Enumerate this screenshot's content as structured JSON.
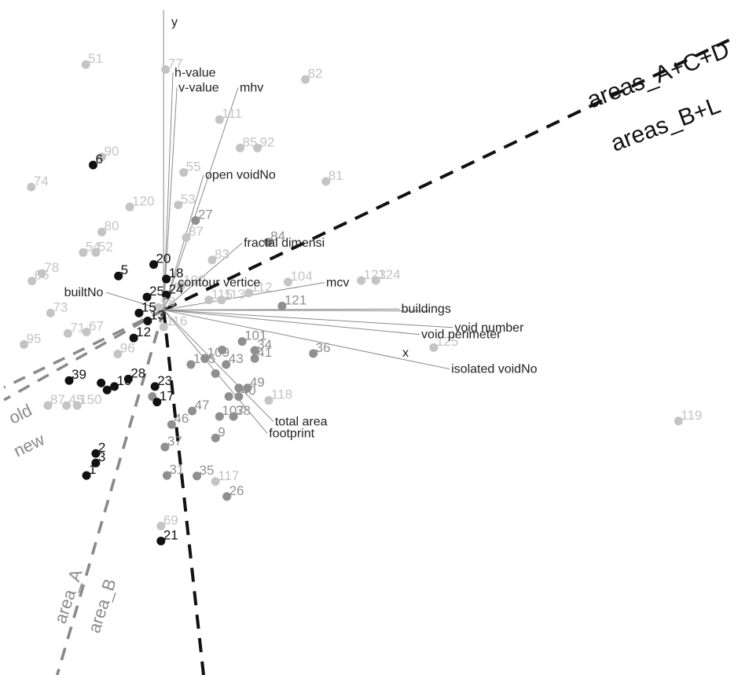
{
  "chart_data": {
    "type": "scatter",
    "title": "",
    "xlabel": "x",
    "ylabel": "y",
    "grid": false,
    "legend": "none",
    "colors": {
      "dark": "#111111",
      "mid": "#8f8f8f",
      "light": "#c4c4c4",
      "dashed_black": "#111111",
      "dashed_gray": "#8a8a8a",
      "loading_line": "#8a8a8a"
    },
    "points": [
      {
        "id": "6",
        "x": 2.14,
        "y": 3.4,
        "tone": "dark"
      },
      {
        "id": "1",
        "x": 2.04,
        "y": -2.81,
        "tone": "dark"
      },
      {
        "id": "2",
        "x": 2.18,
        "y": -2.37,
        "tone": "dark"
      },
      {
        "id": "3",
        "x": 2.18,
        "y": -2.56,
        "tone": "dark"
      },
      {
        "id": "5",
        "x": 2.52,
        "y": 1.18,
        "tone": "dark"
      },
      {
        "id": "12",
        "x": 2.75,
        "y": -0.06,
        "tone": "dark"
      },
      {
        "id": "13",
        "x": 2.96,
        "y": 0.28,
        "tone": "dark"
      },
      {
        "id": "15",
        "x": 2.83,
        "y": 0.44,
        "tone": "dark"
      },
      {
        "id": "18",
        "x": 3.24,
        "y": 1.12,
        "tone": "dark"
      },
      {
        "id": "20",
        "x": 3.05,
        "y": 1.41,
        "tone": "dark"
      },
      {
        "id": "21",
        "x": 3.16,
        "y": -4.12,
        "tone": "dark"
      },
      {
        "id": "23",
        "x": 3.07,
        "y": -1.03,
        "tone": "dark"
      },
      {
        "id": "25",
        "x": 2.95,
        "y": 0.76,
        "tone": "dark"
      },
      {
        "id": "28",
        "x": 2.67,
        "y": -0.88,
        "tone": "dark"
      },
      {
        "id": "39",
        "x": 1.78,
        "y": -0.91,
        "tone": "dark"
      },
      {
        "id": "10",
        "x": 2.46,
        "y": -1.03,
        "tone": "dark"
      },
      {
        "id": "11",
        "x": 2.26,
        "y": -0.96,
        "tone": "dark"
      },
      {
        "id": "17",
        "x": 3.1,
        "y": -1.34,
        "tone": "dark"
      },
      {
        "id": "22",
        "x": 2.35,
        "y": -1.1,
        "tone": "dark"
      },
      {
        "id": "24",
        "x": 3.24,
        "y": 0.8,
        "tone": "dark"
      },
      {
        "id": "27",
        "x": 3.68,
        "y": 2.29,
        "tone": "mid"
      },
      {
        "id": "36",
        "x": 5.45,
        "y": -0.37,
        "tone": "mid"
      },
      {
        "id": "35",
        "x": 3.7,
        "y": -2.82,
        "tone": "mid"
      },
      {
        "id": "26",
        "x": 4.15,
        "y": -3.23,
        "tone": "mid"
      },
      {
        "id": "31",
        "x": 3.25,
        "y": -2.81,
        "tone": "mid"
      },
      {
        "id": "37",
        "x": 3.22,
        "y": -2.24,
        "tone": "mid"
      },
      {
        "id": "46",
        "x": 3.32,
        "y": -1.79,
        "tone": "mid"
      },
      {
        "id": "47",
        "x": 3.63,
        "y": -1.52,
        "tone": "mid"
      },
      {
        "id": "16",
        "x": 3.03,
        "y": -1.23,
        "tone": "mid"
      },
      {
        "id": "40",
        "x": 4.33,
        "y": -1.23,
        "tone": "mid"
      },
      {
        "id": "48",
        "x": 4.33,
        "y": -1.06,
        "tone": "mid"
      },
      {
        "id": "49",
        "x": 4.46,
        "y": -1.06,
        "tone": "mid"
      },
      {
        "id": "41",
        "x": 4.57,
        "y": -0.47,
        "tone": "mid"
      },
      {
        "id": "34",
        "x": 4.57,
        "y": -0.31,
        "tone": "mid"
      },
      {
        "id": "43",
        "x": 4.14,
        "y": -0.59,
        "tone": "mid"
      },
      {
        "id": "38",
        "x": 4.25,
        "y": -1.63,
        "tone": "mid"
      },
      {
        "id": "107",
        "x": 4.04,
        "y": -1.63,
        "tone": "mid"
      },
      {
        "id": "109",
        "x": 3.82,
        "y": -0.47,
        "tone": "mid"
      },
      {
        "id": "105",
        "x": 3.61,
        "y": -0.59,
        "tone": "mid"
      },
      {
        "id": "102",
        "x": 4.08,
        "y": -0.3,
        "tone": "mid"
      },
      {
        "id": "101",
        "x": 4.38,
        "y": -0.13,
        "tone": "mid"
      },
      {
        "id": "9",
        "x": 3.98,
        "y": -2.06,
        "tone": "mid"
      },
      {
        "id": "29",
        "x": 4.18,
        "y": -1.23,
        "tone": "mid"
      },
      {
        "id": "42",
        "x": 3.98,
        "y": -0.77,
        "tone": "mid"
      },
      {
        "id": "117",
        "x": 3.98,
        "y": -2.93,
        "tone": "light"
      },
      {
        "id": "118",
        "x": 4.78,
        "y": -1.31,
        "tone": "light"
      },
      {
        "id": "116",
        "x": 3.2,
        "y": 0.16,
        "tone": "light"
      },
      {
        "id": "125",
        "x": 7.26,
        "y": -0.25,
        "tone": "light"
      },
      {
        "id": "119",
        "x": 10.94,
        "y": -1.72,
        "tone": "light"
      },
      {
        "id": "121",
        "x": 4.98,
        "y": 0.58,
        "tone": "mid"
      },
      {
        "id": "123",
        "x": 6.17,
        "y": 1.09,
        "tone": "light"
      },
      {
        "id": "124",
        "x": 6.39,
        "y": 1.09,
        "tone": "light"
      },
      {
        "id": "104",
        "x": 5.07,
        "y": 1.06,
        "tone": "light"
      },
      {
        "id": "112",
        "x": 4.48,
        "y": 0.84,
        "tone": "light"
      },
      {
        "id": "113",
        "x": 4.07,
        "y": 0.7,
        "tone": "light"
      },
      {
        "id": "115",
        "x": 3.88,
        "y": 0.7,
        "tone": "light"
      },
      {
        "id": "100",
        "x": 3.46,
        "y": 0.98,
        "tone": "light"
      },
      {
        "id": "98",
        "x": 3.12,
        "y": 0.55,
        "tone": "light"
      },
      {
        "id": "84",
        "x": 4.77,
        "y": 1.86,
        "tone": "mid"
      },
      {
        "id": "87",
        "x": 3.54,
        "y": 1.95,
        "tone": "light"
      },
      {
        "id": "83",
        "x": 3.93,
        "y": 1.5,
        "tone": "light"
      },
      {
        "id": "53",
        "x": 3.42,
        "y": 2.6,
        "tone": "light"
      },
      {
        "id": "55",
        "x": 3.5,
        "y": 3.25,
        "tone": "light"
      },
      {
        "id": "111",
        "x": 4.04,
        "y": 4.31,
        "tone": "light"
      },
      {
        "id": "85",
        "x": 4.35,
        "y": 3.74,
        "tone": "light"
      },
      {
        "id": "92",
        "x": 4.61,
        "y": 3.74,
        "tone": "light"
      },
      {
        "id": "82",
        "x": 5.33,
        "y": 5.11,
        "tone": "light"
      },
      {
        "id": "81",
        "x": 5.64,
        "y": 3.07,
        "tone": "light"
      },
      {
        "id": "77",
        "x": 3.23,
        "y": 5.31,
        "tone": "light"
      },
      {
        "id": "51",
        "x": 2.03,
        "y": 5.41,
        "tone": "light"
      },
      {
        "id": "90",
        "x": 2.27,
        "y": 3.56,
        "tone": "light"
      },
      {
        "id": "120",
        "x": 2.69,
        "y": 2.56,
        "tone": "light"
      },
      {
        "id": "80",
        "x": 2.27,
        "y": 2.06,
        "tone": "light"
      },
      {
        "id": "74",
        "x": 1.21,
        "y": 2.96,
        "tone": "light"
      },
      {
        "id": "54",
        "x": 1.99,
        "y": 1.65,
        "tone": "light"
      },
      {
        "id": "52",
        "x": 2.18,
        "y": 1.65,
        "tone": "light"
      },
      {
        "id": "78",
        "x": 1.37,
        "y": 1.23,
        "tone": "light"
      },
      {
        "id": "66",
        "x": 1.22,
        "y": 1.08,
        "tone": "light"
      },
      {
        "id": "73",
        "x": 1.5,
        "y": 0.44,
        "tone": "light"
      },
      {
        "id": "71",
        "x": 1.76,
        "y": 0.03,
        "tone": "light"
      },
      {
        "id": "67",
        "x": 2.04,
        "y": 0.06,
        "tone": "light"
      },
      {
        "id": "95",
        "x": 1.1,
        "y": -0.19,
        "tone": "light"
      },
      {
        "id": "96",
        "x": 2.51,
        "y": -0.38,
        "tone": "light"
      },
      {
        "id": "87b",
        "x": 1.46,
        "y": -1.41,
        "tone": "light"
      },
      {
        "id": "45",
        "x": 1.74,
        "y": -1.41,
        "tone": "light"
      },
      {
        "id": "150",
        "x": 1.9,
        "y": -1.41,
        "tone": "light"
      },
      {
        "id": "69",
        "x": 3.16,
        "y": -3.82,
        "tone": "light"
      }
    ],
    "point_labels": [
      {
        "text": "6",
        "x": 2.14,
        "y": 3.4,
        "tone": "dark"
      },
      {
        "text": "1",
        "x": 2.04,
        "y": -2.81,
        "tone": "dark"
      },
      {
        "text": "2",
        "x": 2.18,
        "y": -2.37,
        "tone": "dark"
      },
      {
        "text": "3",
        "x": 2.18,
        "y": -2.56,
        "tone": "dark"
      },
      {
        "text": "5",
        "x": 2.52,
        "y": 1.18,
        "tone": "dark"
      },
      {
        "text": "12",
        "x": 2.75,
        "y": -0.06,
        "tone": "dark"
      },
      {
        "text": "13",
        "x": 2.96,
        "y": 0.28,
        "tone": "dark"
      },
      {
        "text": "15",
        "x": 2.83,
        "y": 0.44,
        "tone": "dark"
      },
      {
        "text": "18",
        "x": 3.24,
        "y": 1.12,
        "tone": "dark"
      },
      {
        "text": "20",
        "x": 3.05,
        "y": 1.41,
        "tone": "dark"
      },
      {
        "text": "21",
        "x": 3.16,
        "y": -4.12,
        "tone": "dark"
      },
      {
        "text": "23",
        "x": 3.07,
        "y": -1.03,
        "tone": "dark"
      },
      {
        "text": "25",
        "x": 2.95,
        "y": 0.76,
        "tone": "dark"
      },
      {
        "text": "24",
        "x": 3.24,
        "y": 0.8,
        "tone": "dark"
      },
      {
        "text": "28",
        "x": 2.67,
        "y": -0.88,
        "tone": "dark"
      },
      {
        "text": "39",
        "x": 1.78,
        "y": -0.91,
        "tone": "dark"
      },
      {
        "text": "10",
        "x": 2.46,
        "y": -1.03,
        "tone": "dark"
      },
      {
        "text": "17",
        "x": 3.1,
        "y": -1.34,
        "tone": "dark"
      },
      {
        "text": "27",
        "x": 3.68,
        "y": 2.29,
        "tone": "mid"
      },
      {
        "text": "36",
        "x": 5.45,
        "y": -0.37,
        "tone": "mid"
      },
      {
        "text": "35",
        "x": 3.7,
        "y": -2.82,
        "tone": "mid"
      },
      {
        "text": "26",
        "x": 4.15,
        "y": -3.23,
        "tone": "mid"
      },
      {
        "text": "31",
        "x": 3.25,
        "y": -2.81,
        "tone": "mid"
      },
      {
        "text": "37",
        "x": 3.22,
        "y": -2.24,
        "tone": "mid"
      },
      {
        "text": "46",
        "x": 3.32,
        "y": -1.79,
        "tone": "mid"
      },
      {
        "text": "47",
        "x": 3.63,
        "y": -1.52,
        "tone": "mid"
      },
      {
        "text": "40",
        "x": 4.33,
        "y": -1.23,
        "tone": "mid"
      },
      {
        "text": "49",
        "x": 4.46,
        "y": -1.06,
        "tone": "mid"
      },
      {
        "text": "34",
        "x": 4.57,
        "y": -0.31,
        "tone": "mid"
      },
      {
        "text": "41",
        "x": 4.57,
        "y": -0.47,
        "tone": "mid"
      },
      {
        "text": "43",
        "x": 4.14,
        "y": -0.59,
        "tone": "mid"
      },
      {
        "text": "38",
        "x": 4.25,
        "y": -1.63,
        "tone": "mid"
      },
      {
        "text": "107",
        "x": 4.04,
        "y": -1.63,
        "tone": "mid"
      },
      {
        "text": "109",
        "x": 3.82,
        "y": -0.47,
        "tone": "mid"
      },
      {
        "text": "105",
        "x": 3.61,
        "y": -0.59,
        "tone": "mid"
      },
      {
        "text": "101",
        "x": 4.38,
        "y": -0.13,
        "tone": "mid"
      },
      {
        "text": "9",
        "x": 3.98,
        "y": -2.06,
        "tone": "mid"
      },
      {
        "text": "117",
        "x": 3.98,
        "y": -2.93,
        "tone": "light"
      },
      {
        "text": "118",
        "x": 4.78,
        "y": -1.31,
        "tone": "light"
      },
      {
        "text": "116",
        "x": 3.2,
        "y": 0.16,
        "tone": "light"
      },
      {
        "text": "125",
        "x": 7.26,
        "y": -0.25,
        "tone": "light"
      },
      {
        "text": "119",
        "x": 10.94,
        "y": -1.72,
        "tone": "light"
      },
      {
        "text": "121",
        "x": 4.98,
        "y": 0.58,
        "tone": "mid"
      },
      {
        "text": "123",
        "x": 6.17,
        "y": 1.09,
        "tone": "light"
      },
      {
        "text": "124",
        "x": 6.39,
        "y": 1.09,
        "tone": "light"
      },
      {
        "text": "104",
        "x": 5.07,
        "y": 1.06,
        "tone": "light"
      },
      {
        "text": "112",
        "x": 4.48,
        "y": 0.84,
        "tone": "light"
      },
      {
        "text": "113",
        "x": 4.07,
        "y": 0.7,
        "tone": "light"
      },
      {
        "text": "115",
        "x": 3.88,
        "y": 0.7,
        "tone": "light"
      },
      {
        "text": "100",
        "x": 3.46,
        "y": 0.98,
        "tone": "light"
      },
      {
        "text": "98",
        "x": 3.12,
        "y": 0.55,
        "tone": "light"
      },
      {
        "text": "84",
        "x": 4.77,
        "y": 1.86,
        "tone": "mid"
      },
      {
        "text": "87",
        "x": 3.54,
        "y": 1.95,
        "tone": "light"
      },
      {
        "text": "83",
        "x": 3.93,
        "y": 1.5,
        "tone": "light"
      },
      {
        "text": "53",
        "x": 3.42,
        "y": 2.6,
        "tone": "light"
      },
      {
        "text": "55",
        "x": 3.5,
        "y": 3.25,
        "tone": "light"
      },
      {
        "text": "111",
        "x": 4.04,
        "y": 4.31,
        "tone": "light"
      },
      {
        "text": "85",
        "x": 4.35,
        "y": 3.74,
        "tone": "light"
      },
      {
        "text": "92",
        "x": 4.61,
        "y": 3.74,
        "tone": "light"
      },
      {
        "text": "82",
        "x": 5.33,
        "y": 5.11,
        "tone": "light"
      },
      {
        "text": "81",
        "x": 5.64,
        "y": 3.07,
        "tone": "light"
      },
      {
        "text": "77",
        "x": 3.23,
        "y": 5.31,
        "tone": "light"
      },
      {
        "text": "51",
        "x": 2.03,
        "y": 5.41,
        "tone": "light"
      },
      {
        "text": "90",
        "x": 2.27,
        "y": 3.56,
        "tone": "light"
      },
      {
        "text": "120",
        "x": 2.69,
        "y": 2.56,
        "tone": "light"
      },
      {
        "text": "80",
        "x": 2.27,
        "y": 2.06,
        "tone": "light"
      },
      {
        "text": "74",
        "x": 1.21,
        "y": 2.96,
        "tone": "light"
      },
      {
        "text": "54",
        "x": 1.99,
        "y": 1.65,
        "tone": "light"
      },
      {
        "text": "52",
        "x": 2.18,
        "y": 1.65,
        "tone": "light"
      },
      {
        "text": "78",
        "x": 1.37,
        "y": 1.23,
        "tone": "light"
      },
      {
        "text": "66",
        "x": 1.22,
        "y": 1.08,
        "tone": "light"
      },
      {
        "text": "73",
        "x": 1.5,
        "y": 0.44,
        "tone": "light"
      },
      {
        "text": "71",
        "x": 1.76,
        "y": 0.03,
        "tone": "light"
      },
      {
        "text": "67",
        "x": 2.04,
        "y": 0.06,
        "tone": "light"
      },
      {
        "text": "95",
        "x": 1.1,
        "y": -0.19,
        "tone": "light"
      },
      {
        "text": "96",
        "x": 2.51,
        "y": -0.38,
        "tone": "light"
      },
      {
        "text": "87",
        "x": 1.46,
        "y": -1.41,
        "tone": "light"
      },
      {
        "text": "45",
        "x": 1.74,
        "y": -1.41,
        "tone": "light"
      },
      {
        "text": "150",
        "x": 1.9,
        "y": -1.41,
        "tone": "light"
      },
      {
        "text": "69",
        "x": 3.16,
        "y": -3.82,
        "tone": "light"
      }
    ],
    "origin": {
      "x": 3.2,
      "y": 0.5
    },
    "variables": [
      {
        "name": "h-value",
        "x": 3.34,
        "y": 5.25
      },
      {
        "name": "v-value",
        "x": 3.4,
        "y": 4.95
      },
      {
        "name": "mhv",
        "x": 4.32,
        "y": 4.95
      },
      {
        "name": "open voidNo",
        "x": 3.8,
        "y": 3.2
      },
      {
        "name": "fractal dimensi",
        "x": 4.38,
        "y": 1.84
      },
      {
        "name": "contour vertice",
        "x": 3.39,
        "y": 1.05
      },
      {
        "name": "builtNo",
        "x": 2.34,
        "y": 0.85
      },
      {
        "name": "mcv",
        "x": 5.62,
        "y": 1.05
      },
      {
        "name": "buildings",
        "x": 6.75,
        "y": 0.52
      },
      {
        "name": "void number",
        "x": 7.55,
        "y": 0.15
      },
      {
        "name": "void perimeter",
        "x": 7.05,
        "y": 0.01
      },
      {
        "name": "isolated voidNo",
        "x": 7.5,
        "y": -0.68
      },
      {
        "name": "total area",
        "x": 4.85,
        "y": -1.73
      },
      {
        "name": "footprint",
        "x": 4.76,
        "y": -1.97
      }
    ],
    "axes": [
      {
        "name": "y",
        "x": 3.2,
        "y": 6.5
      },
      {
        "name": "x",
        "x": 7.2,
        "y": 0.48
      }
    ],
    "divisions": [
      {
        "label": "areas_A+C+D",
        "style": "black-dashed",
        "from": [
          3.2,
          0.5
        ],
        "to": [
          11.7,
          5.9
        ]
      },
      {
        "label": "areas_B+L",
        "style": "black-dashed",
        "from": [
          3.2,
          0.5
        ],
        "to": [
          3.8,
          -6.8
        ]
      },
      {
        "label": "old",
        "style": "gray-dashed",
        "from": [
          3.2,
          0.5
        ],
        "to": [
          0.8,
          -1.05
        ]
      },
      {
        "label": "new",
        "style": "gray-dashed",
        "from": [
          3.2,
          0.5
        ],
        "to": [
          0.8,
          -1.3
        ]
      },
      {
        "label": "area_A",
        "style": "gray-dashed",
        "from": [
          3.2,
          0.5
        ],
        "to": [
          1.6,
          -6.8
        ]
      },
      {
        "label": "area_B",
        "style": "gray-dashed",
        "from": [
          3.2,
          0.5
        ],
        "to": [
          1.6,
          -6.8
        ]
      }
    ],
    "xlim": [
      0.74,
      12.0
    ],
    "ylim": [
      -6.8,
      6.7
    ]
  }
}
